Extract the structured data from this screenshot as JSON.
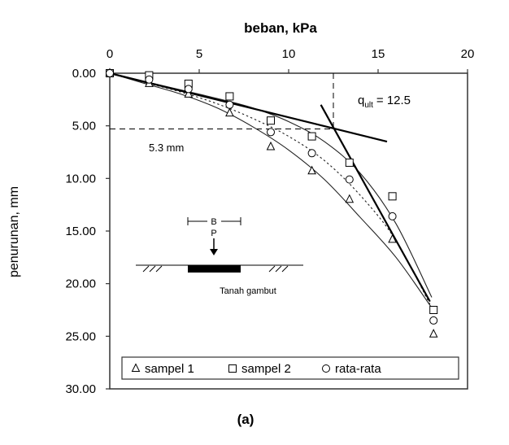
{
  "figure_label": "(a)",
  "chart_data": {
    "type": "scatter",
    "xlabel": "beban, kPa",
    "ylabel": "penurunan, mm",
    "xlim": [
      0,
      20
    ],
    "ylim": [
      0,
      30
    ],
    "y_inverted": true,
    "x_axis_position": "top",
    "x_ticks": [
      0,
      5,
      10,
      15,
      20
    ],
    "x_tick_labels": [
      "0",
      "5",
      "10",
      "15",
      "20"
    ],
    "y_ticks": [
      0,
      5,
      10,
      15,
      20,
      25,
      30
    ],
    "y_tick_labels": [
      "0.00",
      "5.00",
      "10.00",
      "15.00",
      "20.00",
      "25.00",
      "30.00"
    ],
    "grid": false,
    "legend_position": "bottom",
    "series": [
      {
        "name": "sampel 1",
        "marker": "triangle",
        "x": [
          0,
          2.2,
          4.4,
          6.7,
          9.0,
          11.3,
          13.4,
          15.8,
          18.1
        ],
        "y": [
          0,
          1.0,
          2.0,
          3.8,
          7.0,
          9.3,
          12.0,
          15.8,
          24.8
        ]
      },
      {
        "name": "sampel 2",
        "marker": "square",
        "x": [
          0,
          2.2,
          4.4,
          6.7,
          9.0,
          11.3,
          13.4,
          15.8,
          18.1
        ],
        "y": [
          0,
          0.2,
          1.0,
          2.2,
          4.5,
          6.0,
          8.5,
          11.7,
          22.5
        ]
      },
      {
        "name": "rata-rata",
        "marker": "circle",
        "x": [
          0,
          2.2,
          4.4,
          6.7,
          9.0,
          11.3,
          13.4,
          15.8,
          18.1
        ],
        "y": [
          0,
          0.6,
          1.5,
          3.0,
          5.6,
          7.6,
          10.1,
          13.6,
          23.5
        ]
      }
    ],
    "curves": [
      {
        "style": "thin-solid",
        "x": [
          0,
          2,
          4,
          6,
          8,
          10,
          12,
          14,
          16,
          18
        ],
        "y": [
          0,
          1.0,
          2.0,
          3.3,
          5.1,
          7.3,
          10.1,
          13.7,
          17.5,
          22.3
        ]
      },
      {
        "style": "thin-solid",
        "x": [
          0,
          2,
          4,
          6,
          8,
          10,
          12,
          14,
          16,
          18
        ],
        "y": [
          0,
          0.8,
          1.6,
          2.4,
          3.3,
          4.6,
          6.5,
          9.5,
          14.3,
          21.3
        ]
      },
      {
        "style": "dotted",
        "x": [
          0,
          2,
          4,
          6,
          8,
          10,
          12,
          14,
          16,
          18
        ],
        "y": [
          0,
          0.9,
          1.8,
          2.9,
          4.3,
          6.0,
          8.3,
          11.6,
          15.9,
          22.3
        ]
      }
    ],
    "tangent_lines": [
      {
        "x": [
          0,
          15.5
        ],
        "y": [
          0,
          6.5
        ]
      },
      {
        "x": [
          11.8,
          17.9
        ],
        "y": [
          3.0,
          21.7
        ]
      }
    ],
    "reference_lines": [
      {
        "style": "dashed",
        "orientation": "horizontal",
        "y": 5.3,
        "x_from": 0,
        "x_to": 12.5
      },
      {
        "style": "dashed",
        "orientation": "vertical",
        "x": 12.5,
        "y_from": 0,
        "y_to": 5.3
      }
    ],
    "annotations": {
      "qult_main": "q",
      "qult_sub": "ult",
      "qult_value": "= 12.5",
      "settlement_label": "5.3 mm"
    },
    "inset": {
      "b_label": "B",
      "p_label": "P",
      "soil_label": "Tanah gambut"
    }
  }
}
